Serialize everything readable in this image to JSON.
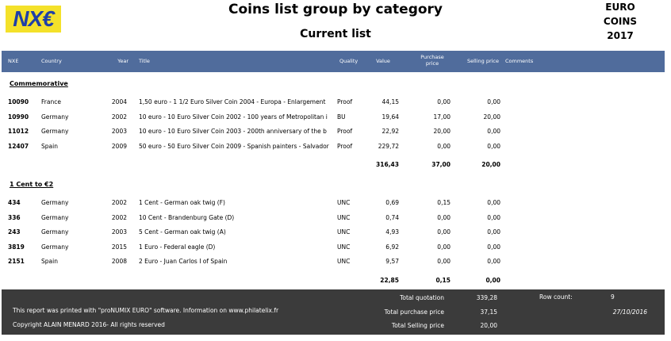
{
  "header": {
    "logo": "NX€",
    "title": "Coins list group by category",
    "subtitle": "Current list",
    "badge": [
      "EURO",
      "COINS",
      "2017"
    ]
  },
  "table": {
    "columns": [
      "NXE",
      "Country",
      "Year",
      "Title",
      "Quality",
      "Value",
      "Purchase price",
      "Selling price",
      "Comments"
    ],
    "groups": [
      {
        "name": "Commemorative",
        "rows": [
          [
            "10090",
            "France",
            "2004",
            "1,50 euro - 1 1/2 Euro Silver Coin 2004 - Europa - Enlargement",
            "Proof",
            "44,15",
            "0,00",
            "0,00"
          ],
          [
            "10990",
            "Germany",
            "2002",
            "10 euro - 10 Euro Silver Coin 2002 - 100 years of Metropolitan i",
            "BU",
            "19,64",
            "17,00",
            "20,00"
          ],
          [
            "11012",
            "Germany",
            "2003",
            "10 euro - 10 Euro Silver Coin 2003 - 200th anniversary of the b",
            "Proof",
            "22,92",
            "20,00",
            "0,00"
          ],
          [
            "12407",
            "Spain",
            "2009",
            "50 euro - 50 Euro Silver Coin 2009 - Spanish painters - Salvador",
            "Proof",
            "229,72",
            "0,00",
            "0,00"
          ]
        ],
        "totals": [
          "316,43",
          "37,00",
          "20,00"
        ]
      },
      {
        "name": "1 Cent to €2",
        "rows": [
          [
            "434",
            "Germany",
            "2002",
            "1 Cent - German oak twig (F)",
            "UNC",
            "0,69",
            "0,15",
            "0,00"
          ],
          [
            "336",
            "Germany",
            "2002",
            "10 Cent - Brandenburg Gate (D)",
            "UNC",
            "0,74",
            "0,00",
            "0,00"
          ],
          [
            "243",
            "Germany",
            "2003",
            "5 Cent - German oak twig (A)",
            "UNC",
            "4,93",
            "0,00",
            "0,00"
          ],
          [
            "3819",
            "Germany",
            "2015",
            "1 Euro - Federal eagle (D)",
            "UNC",
            "6,92",
            "0,00",
            "0,00"
          ],
          [
            "2151",
            "Spain",
            "2008",
            "2 Euro - Juan Carlos I of Spain",
            "UNC",
            "9,57",
            "0,00",
            "0,00"
          ]
        ],
        "totals": [
          "22,85",
          "0,15",
          "0,00"
        ]
      }
    ]
  },
  "footer": {
    "note": "This report was printed with \"proNUMIX EURO\" software. Information on www.philatelix.fr",
    "copyright": "Copyright ALAIN MENARD 2016- All rights reserved",
    "totals": [
      {
        "label": "Total quotation",
        "value": "339,28"
      },
      {
        "label": "Total purchase price",
        "value": "37,15"
      },
      {
        "label": "Total Selling price",
        "value": "20,00"
      }
    ],
    "row_count_label": "Row count:",
    "row_count": "9",
    "date": "27/10/2016"
  }
}
